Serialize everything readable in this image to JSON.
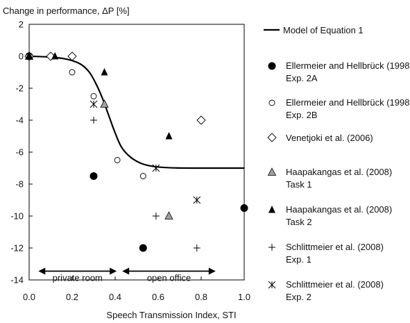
{
  "chart_data": {
    "type": "scatter",
    "ylabel": "Change in performance, ΔP [%]",
    "xlabel": "Speech Transmission Index, STI",
    "xlim": [
      0,
      1
    ],
    "ylim": [
      -14,
      2
    ],
    "x_ticks": [
      "0.0",
      "0.2",
      "0.4",
      "0.6",
      "0.8",
      "1.0"
    ],
    "y_ticks": [
      "2",
      "0",
      "-2",
      "-4",
      "-6",
      "-8",
      "-10",
      "-12",
      "-14"
    ],
    "grid": false,
    "legend_position": "right",
    "model": {
      "name": "Model of Equation 1",
      "points": [
        [
          0,
          0
        ],
        [
          0.1,
          -0.05
        ],
        [
          0.18,
          -0.2
        ],
        [
          0.24,
          -0.5
        ],
        [
          0.28,
          -1.0
        ],
        [
          0.31,
          -1.7
        ],
        [
          0.34,
          -2.6
        ],
        [
          0.37,
          -3.7
        ],
        [
          0.4,
          -4.8
        ],
        [
          0.43,
          -5.7
        ],
        [
          0.47,
          -6.3
        ],
        [
          0.52,
          -6.7
        ],
        [
          0.58,
          -6.9
        ],
        [
          0.66,
          -6.98
        ],
        [
          0.8,
          -7.0
        ],
        [
          1.0,
          -7.0
        ]
      ]
    },
    "series": [
      {
        "name": "Ellermeier and Hellbrück (1998) Exp. 2A",
        "marker": "filled-circle",
        "points": [
          [
            0.0,
            0.0
          ],
          [
            0.3,
            -7.5
          ],
          [
            0.53,
            -12.0
          ],
          [
            1.0,
            -9.5
          ]
        ]
      },
      {
        "name": "Ellermeier and Hellbrück (1998) Exp. 2B",
        "marker": "open-circle",
        "points": [
          [
            0.0,
            0.0
          ],
          [
            0.1,
            0.0
          ],
          [
            0.2,
            -1.0
          ],
          [
            0.3,
            -2.5
          ],
          [
            0.41,
            -6.5
          ],
          [
            0.53,
            -7.5
          ]
        ]
      },
      {
        "name": "Venetjoki et al. (2006)",
        "marker": "open-diamond",
        "points": [
          [
            0.0,
            0.0
          ],
          [
            0.1,
            0.0
          ],
          [
            0.2,
            0.0
          ],
          [
            0.8,
            -4.0
          ]
        ]
      },
      {
        "name": "Haapakangas et al. (2008) Task 1",
        "marker": "gray-triangle",
        "points": [
          [
            0.0,
            0.0
          ],
          [
            0.35,
            -3.0
          ],
          [
            0.65,
            -10.0
          ]
        ]
      },
      {
        "name": "Haapakangas et al. (2008) Task 2",
        "marker": "filled-triangle",
        "points": [
          [
            0.0,
            0.0
          ],
          [
            0.12,
            0.0
          ],
          [
            0.35,
            -1.0
          ],
          [
            0.65,
            -5.0
          ]
        ]
      },
      {
        "name": "Schlittmeier et al. (2008) Exp. 1",
        "marker": "plus",
        "points": [
          [
            0.3,
            -4.0
          ],
          [
            0.59,
            -10.0
          ],
          [
            0.78,
            -12.0
          ]
        ]
      },
      {
        "name": "Schlittmeier et al. (2008) Exp. 2",
        "marker": "asterisk",
        "points": [
          [
            0.3,
            -3.0
          ],
          [
            0.59,
            -7.0
          ],
          [
            0.78,
            -9.0
          ]
        ]
      }
    ],
    "annotations": [
      {
        "text": "private room",
        "x_range": [
          0.03,
          0.42
        ],
        "y": -12.8
      },
      {
        "text": "open office",
        "x_range": [
          0.42,
          0.88
        ],
        "y": -12.8
      }
    ]
  }
}
